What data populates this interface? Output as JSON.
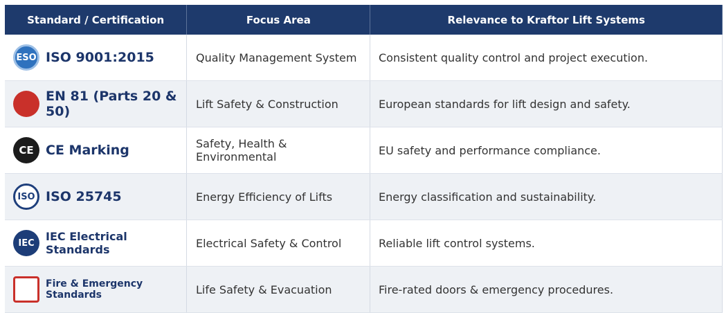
{
  "table": {
    "headers": [
      "Standard / Certification",
      "Focus Area",
      "Relevance to Kraftor Lift Systems"
    ],
    "rows": [
      {
        "icon": "ESO",
        "standard": "ISO 9001:2015",
        "focus": "Quality Management System",
        "relevance": "Consistent quality control and project execution."
      },
      {
        "standard": "EN 81 (Parts 20 & 50)",
        "focus": "Lift Safety & Construction",
        "relevance": "European standards for lift design and safety."
      },
      {
        "icon": "CE",
        "standard": "CE Marking",
        "focus": "Safety, Health & Environmental",
        "relevance": "EU safety and performance compliance."
      },
      {
        "icon": "ISO",
        "standard": "ISO 25745",
        "focus": "Energy Efficiency of Lifts",
        "relevance": "Energy classification and sustainability."
      },
      {
        "icon": "IEC",
        "standard": "IEC Electrical Standards",
        "focus": "Electrical Safety & Control",
        "relevance": "Reliable lift control systems."
      },
      {
        "standard": "Fire & Emergency Standards",
        "focus": "Life Safety & Evacuation",
        "relevance": "Fire-rated doors & emergency procedures."
      }
    ]
  }
}
